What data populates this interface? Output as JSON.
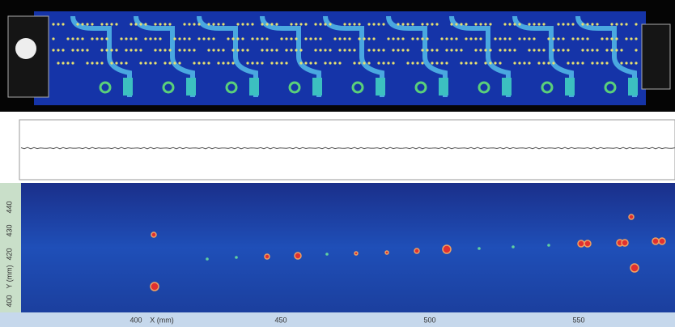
{
  "x_axis": {
    "ticks": [
      "400",
      "450",
      "500",
      "550"
    ],
    "label": "X (mm)"
  },
  "y_axis": {
    "ticks": [
      "440",
      "430",
      "420",
      "400"
    ],
    "label": "Y (mm)"
  }
}
